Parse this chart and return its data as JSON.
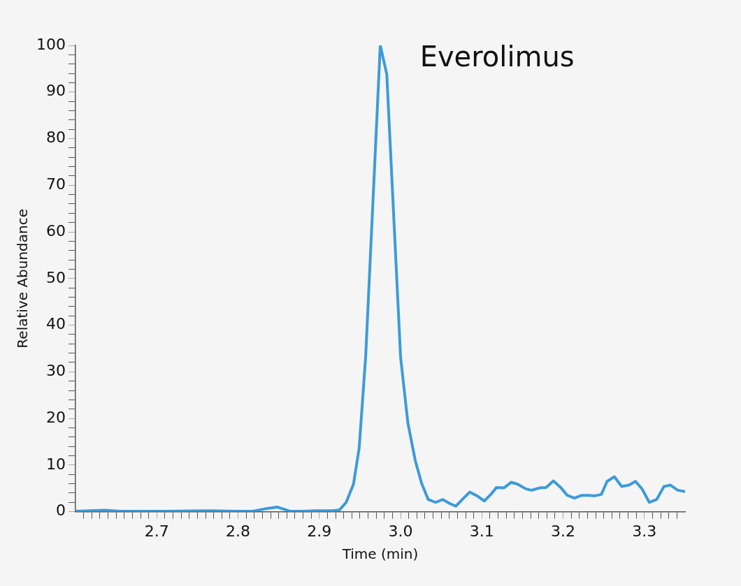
{
  "chart_data": {
    "type": "line",
    "title": "Everolimus",
    "xlabel": "Time (min)",
    "ylabel": "Relative Abundance",
    "xlim": [
      2.6,
      3.35
    ],
    "ylim": [
      0,
      100
    ],
    "xticks": [
      {
        "value": 2.61,
        "label": null
      },
      {
        "value": 2.62,
        "label": null
      },
      {
        "value": 2.63,
        "label": null
      },
      {
        "value": 2.64,
        "label": null
      },
      {
        "value": 2.65,
        "label": null
      },
      {
        "value": 2.66,
        "label": null
      },
      {
        "value": 2.67,
        "label": null
      },
      {
        "value": 2.68,
        "label": null
      },
      {
        "value": 2.69,
        "label": null
      },
      2.7,
      {
        "value": 2.71,
        "label": null
      },
      {
        "value": 2.72,
        "label": null
      },
      {
        "value": 2.73,
        "label": null
      },
      {
        "value": 2.74,
        "label": null
      },
      {
        "value": 2.75,
        "label": null
      },
      {
        "value": 2.76,
        "label": null
      },
      {
        "value": 2.77,
        "label": null
      },
      {
        "value": 2.78,
        "label": null
      },
      {
        "value": 2.79,
        "label": null
      },
      2.8,
      {
        "value": 2.81,
        "label": null
      },
      {
        "value": 2.82,
        "label": null
      },
      {
        "value": 2.83,
        "label": null
      },
      {
        "value": 2.84,
        "label": null
      },
      {
        "value": 2.85,
        "label": null
      },
      {
        "value": 2.86,
        "label": null
      },
      {
        "value": 2.87,
        "label": null
      },
      {
        "value": 2.88,
        "label": null
      },
      {
        "value": 2.89,
        "label": null
      },
      2.9,
      {
        "value": 2.91,
        "label": null
      },
      {
        "value": 2.92,
        "label": null
      },
      {
        "value": 2.93,
        "label": null
      },
      {
        "value": 2.94,
        "label": null
      },
      {
        "value": 2.95,
        "label": null
      },
      {
        "value": 2.96,
        "label": null
      },
      {
        "value": 2.97,
        "label": null
      },
      {
        "value": 2.98,
        "label": null
      },
      {
        "value": 2.99,
        "label": null
      },
      {
        "value": 3,
        "label": "3.0"
      },
      {
        "value": 3.01,
        "label": null
      },
      {
        "value": 3.02,
        "label": null
      },
      {
        "value": 3.03,
        "label": null
      },
      {
        "value": 3.04,
        "label": null
      },
      {
        "value": 3.05,
        "label": null
      },
      {
        "value": 3.06,
        "label": null
      },
      {
        "value": 3.07,
        "label": null
      },
      {
        "value": 3.08,
        "label": null
      },
      {
        "value": 3.09,
        "label": null
      },
      3.1,
      {
        "value": 3.11,
        "label": null
      },
      {
        "value": 3.12,
        "label": null
      },
      {
        "value": 3.13,
        "label": null
      },
      {
        "value": 3.14,
        "label": null
      },
      {
        "value": 3.15,
        "label": null
      },
      {
        "value": 3.16,
        "label": null
      },
      {
        "value": 3.17,
        "label": null
      },
      {
        "value": 3.18,
        "label": null
      },
      {
        "value": 3.19,
        "label": null
      },
      3.2,
      {
        "value": 3.21,
        "label": null
      },
      {
        "value": 3.22,
        "label": null
      },
      {
        "value": 3.23,
        "label": null
      },
      {
        "value": 3.24,
        "label": null
      },
      {
        "value": 3.25,
        "label": null
      },
      {
        "value": 3.26,
        "label": null
      },
      {
        "value": 3.27,
        "label": null
      },
      {
        "value": 3.28,
        "label": null
      },
      {
        "value": 3.29,
        "label": null
      },
      3.3,
      {
        "value": 3.31,
        "label": null
      },
      {
        "value": 3.32,
        "label": null
      },
      {
        "value": 3.33,
        "label": null
      },
      {
        "value": 3.34,
        "label": null
      }
    ],
    "yticks": [
      0,
      {
        "value": 2,
        "label": null
      },
      {
        "value": 4,
        "label": null
      },
      {
        "value": 6,
        "label": null
      },
      {
        "value": 8,
        "label": null
      },
      10,
      {
        "value": 12,
        "label": null
      },
      {
        "value": 14,
        "label": null
      },
      {
        "value": 16,
        "label": null
      },
      {
        "value": 18,
        "label": null
      },
      20,
      {
        "value": 22,
        "label": null
      },
      {
        "value": 24,
        "label": null
      },
      {
        "value": 26,
        "label": null
      },
      {
        "value": 28,
        "label": null
      },
      30,
      {
        "value": 32,
        "label": null
      },
      {
        "value": 34,
        "label": null
      },
      {
        "value": 36,
        "label": null
      },
      {
        "value": 38,
        "label": null
      },
      40,
      {
        "value": 42,
        "label": null
      },
      {
        "value": 44,
        "label": null
      },
      {
        "value": 46,
        "label": null
      },
      {
        "value": 48,
        "label": null
      },
      50,
      {
        "value": 52,
        "label": null
      },
      {
        "value": 54,
        "label": null
      },
      {
        "value": 56,
        "label": null
      },
      {
        "value": 58,
        "label": null
      },
      60,
      {
        "value": 62,
        "label": null
      },
      {
        "value": 64,
        "label": null
      },
      {
        "value": 66,
        "label": null
      },
      {
        "value": 68,
        "label": null
      },
      70,
      {
        "value": 72,
        "label": null
      },
      {
        "value": 74,
        "label": null
      },
      {
        "value": 76,
        "label": null
      },
      {
        "value": 78,
        "label": null
      },
      80,
      {
        "value": 82,
        "label": null
      },
      {
        "value": 84,
        "label": null
      },
      {
        "value": 86,
        "label": null
      },
      {
        "value": 88,
        "label": null
      },
      90,
      {
        "value": 92,
        "label": null
      },
      {
        "value": 94,
        "label": null
      },
      {
        "value": 96,
        "label": null
      },
      {
        "value": 98,
        "label": null
      },
      100
    ],
    "x": [
      2.6,
      2.636,
      2.655,
      2.712,
      2.765,
      2.8,
      2.818,
      2.833,
      2.848,
      2.864,
      2.879,
      2.896,
      2.917,
      2.925,
      2.933,
      2.942,
      2.949,
      2.957,
      2.975,
      2.983,
      3.0,
      3.009,
      3.018,
      3.026,
      3.034,
      3.043,
      3.052,
      3.061,
      3.068,
      3.077,
      3.085,
      3.094,
      3.103,
      3.111,
      3.118,
      3.127,
      3.136,
      3.144,
      3.154,
      3.161,
      3.171,
      3.179,
      3.188,
      3.197,
      3.205,
      3.214,
      3.223,
      3.232,
      3.239,
      3.247,
      3.254,
      3.263,
      3.272,
      3.281,
      3.289,
      3.297,
      3.306,
      3.315,
      3.324,
      3.332,
      3.341,
      3.35
    ],
    "series": [
      {
        "color": "#3d9bd8",
        "values": [
          0.1,
          0.3,
          0.1,
          0.1,
          0.2,
          0.1,
          0.1,
          0.6,
          1.0,
          0.1,
          0.1,
          0.2,
          0.2,
          0.4,
          2.0,
          5.9,
          13.6,
          33.2,
          100,
          93.8,
          33.1,
          19,
          11,
          6,
          2.6,
          2.0,
          2.6,
          1.7,
          1.2,
          2.8,
          4.2,
          3.4,
          2.3,
          3.7,
          5.2,
          5.1,
          6.3,
          5.9,
          4.9,
          4.6,
          5.1,
          5.2,
          6.6,
          5.2,
          3.5,
          2.9,
          3.5,
          3.5,
          3.4,
          3.7,
          6.5,
          7.5,
          5.4,
          5.7,
          6.5,
          4.9,
          2.0,
          2.6,
          5.4,
          5.7,
          4.6,
          4.3
        ]
      }
    ],
    "grid": false,
    "legend": false,
    "marker": "none",
    "line_style": "solid"
  }
}
